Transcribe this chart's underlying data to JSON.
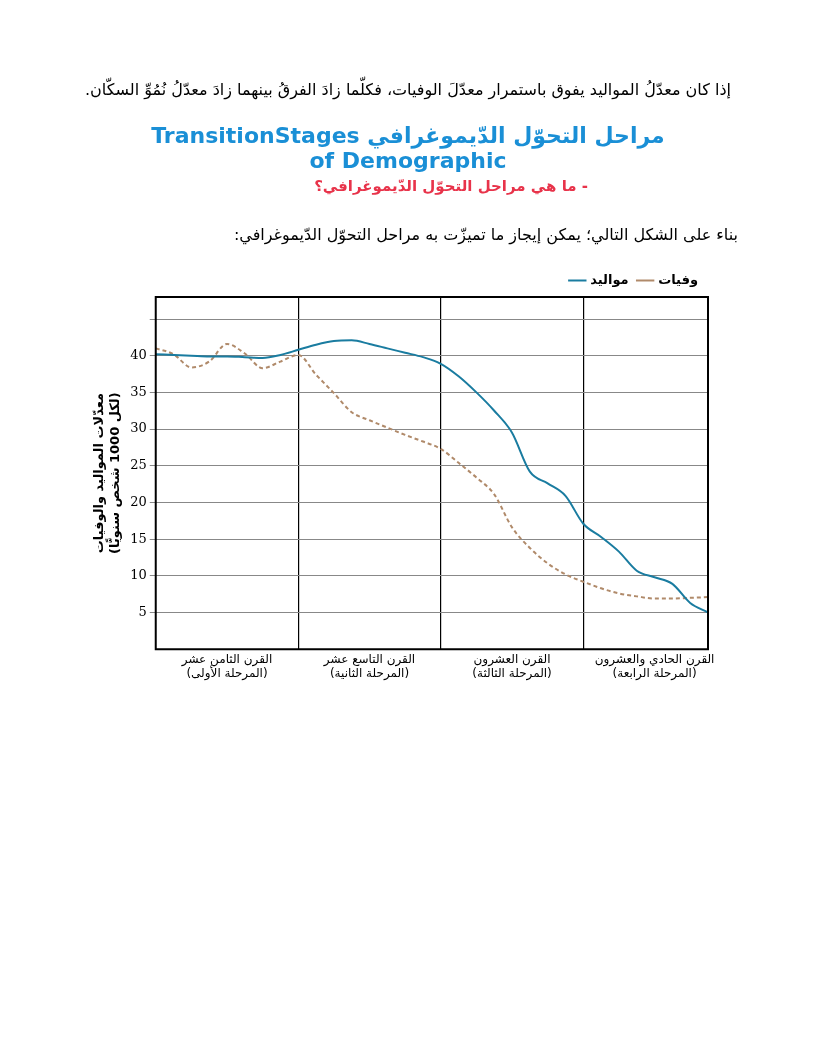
{
  "chart_data": {
    "type": "line",
    "title": "مراحل التحوّل الدّيموغرافي TransitionStages of Demographic",
    "subtitle": "- ما هي مراحل التحوّل الدّيموغرافي؟",
    "annotations": [
      "إذا كان معدّلُ المواليد يفوق باستمرار معدّلَ الوفيات، فكلّما زادَ الفرقُ بينهما زادَ معدّلُ نُمُوِّ السكّان.",
      "بناء على الشكل التالي؛ يمكن إيجاز ما تميزّت به مراحل التحوّل الدّيموغرافي:"
    ],
    "ylabel": "معدّلات المواليد والوفيات\n(لكل 1000 شخص سنويًّا)",
    "categories": [
      null,
      null,
      null,
      null,
      "القرن الثامن عشر\n(المرحلة الأولى)",
      null,
      null,
      null,
      null,
      null,
      null,
      null,
      "القرن التاسع عشر\n(المرحلة الثانية)",
      null,
      null,
      null,
      null,
      null,
      null,
      null,
      "القرن العشرون\n(المرحلة الثالثة)",
      null,
      null,
      null,
      null,
      null,
      null,
      null,
      "القرن الحادي والعشرون\n(المرحلة الرابعة)",
      null,
      null,
      null
    ],
    "ylim": [
      0,
      48
    ],
    "yticks": [
      5,
      10,
      15,
      20,
      25,
      30,
      35,
      40,
      {
        "value": 45,
        "label": null
      }
    ],
    "grid": true,
    "legend": "top right",
    "marker": "none",
    "series": [
      {
        "name": "مواليد",
        "color": "#1a7ca0",
        "line_style": "solid",
        "values": [
          40.2,
          40.1,
          40.0,
          39.9,
          39.9,
          39.8,
          39.7,
          40.1,
          40.8,
          41.5,
          42.0,
          42.1,
          41.6,
          41.0,
          40.4,
          39.8,
          38.9,
          37.2,
          35.0,
          32.5,
          29.5,
          24.2,
          22.6,
          20.9,
          17.1,
          15.3,
          13.3,
          10.7,
          9.8,
          8.9,
          6.3,
          5.0
        ]
      },
      {
        "name": "وفيات",
        "color": "#b08a6a",
        "line_style": "dashed",
        "values": [
          41.0,
          40.2,
          38.4,
          39.2,
          41.6,
          40.3,
          38.3,
          39.2,
          40.1,
          37.4,
          34.9,
          32.3,
          31.2,
          30.2,
          29.2,
          28.3,
          27.3,
          25.4,
          23.4,
          21.1,
          16.6,
          13.8,
          11.7,
          10.2,
          9.2,
          8.3,
          7.6,
          7.2,
          6.9,
          6.9,
          7.0,
          7.1
        ]
      }
    ]
  }
}
